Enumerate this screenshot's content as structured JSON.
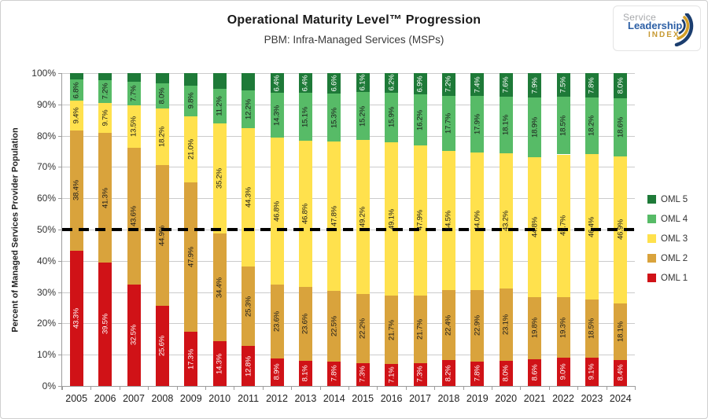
{
  "header": {
    "title": "Operational Maturity Level™ Progression",
    "subtitle": "PBM: Infra-Managed Services (MSPs)"
  },
  "logo": {
    "word1": "Service",
    "word2": "Leadership",
    "word3": "INDEX",
    "blue": "#2c5fa5",
    "gray": "#a7a9ac",
    "gold": "#c79a33",
    "swoosh_navy": "#1b3e6f"
  },
  "chart_data": {
    "type": "bar",
    "stacked": true,
    "title": "Operational Maturity Level™ Progression",
    "subtitle": "PBM: Infra-Managed Services (MSPs)",
    "xlabel": "",
    "ylabel": "Percent of Managed Services Provider Population",
    "ylim": [
      0,
      100
    ],
    "ytick_labels": [
      "0%",
      "10%",
      "20%",
      "30%",
      "40%",
      "50%",
      "60%",
      "70%",
      "80%",
      "90%",
      "100%"
    ],
    "grid": true,
    "grid_color": "#cbcbcb",
    "legend_position": "right",
    "legend_order_top_to_bottom": [
      "OML 5",
      "OML 4",
      "OML 3",
      "OML 2",
      "OML 1"
    ],
    "reference_line": {
      "value": 50,
      "style": "dashed",
      "color": "#000000"
    },
    "categories": [
      "2005",
      "2006",
      "2007",
      "2008",
      "2009",
      "2010",
      "2011",
      "2012",
      "2013",
      "2014",
      "2015",
      "2016",
      "2017",
      "2018",
      "2019",
      "2020",
      "2021",
      "2022",
      "2023",
      "2024"
    ],
    "series": [
      {
        "name": "OML 1",
        "color": "#d01217",
        "label_color": "#ffffff",
        "values": [
          43.3,
          39.5,
          32.5,
          25.6,
          17.3,
          14.3,
          12.8,
          8.9,
          8.1,
          7.8,
          7.3,
          7.1,
          7.3,
          8.2,
          7.8,
          8.0,
          8.6,
          9.0,
          9.1,
          8.4
        ],
        "labels": [
          "43.3%",
          "39.5%",
          "32.5%",
          "25.6%",
          "17.3%",
          "14.3%",
          "12.8%",
          "8.9%",
          "8.1%",
          "7.8%",
          "7.3%",
          "7.1%",
          "7.3%",
          "8.2%",
          "7.8%",
          "8.0%",
          "8.6%",
          "9.0%",
          "9.1%",
          "8.4%"
        ]
      },
      {
        "name": "OML 2",
        "color": "#d9a33c",
        "label_color": "#1a1a1a",
        "values": [
          38.4,
          41.3,
          43.6,
          44.9,
          47.9,
          34.4,
          25.3,
          23.6,
          23.6,
          22.5,
          22.2,
          21.7,
          21.7,
          22.4,
          22.9,
          23.1,
          19.8,
          19.3,
          18.5,
          18.1
        ],
        "labels": [
          "38.4%",
          "41.3%",
          "43.6%",
          "44.9%",
          "47.9%",
          "34.4%",
          "25.3%",
          "23.6%",
          "23.6%",
          "22.5%",
          "22.2%",
          "21.7%",
          "21.7%",
          "22.4%",
          "22.9%",
          "23.1%",
          "19.8%",
          "19.3%",
          "18.5%",
          "18.1%"
        ]
      },
      {
        "name": "OML 3",
        "color": "#ffe14d",
        "label_color": "#1a1a1a",
        "values": [
          9.4,
          9.7,
          13.5,
          18.2,
          21.0,
          35.2,
          44.3,
          46.8,
          46.8,
          47.8,
          49.2,
          49.1,
          47.9,
          44.5,
          44.0,
          43.2,
          44.8,
          45.7,
          46.4,
          46.9
        ],
        "labels": [
          "9.4%",
          "9.7%",
          "13.5%",
          "18.2%",
          "21.0%",
          "35.2%",
          "44.3%",
          "46.8%",
          "46.8%",
          "47.8%",
          "49.2%",
          "49.1%",
          "47.9%",
          "44.5%",
          "44.0%",
          "43.2%",
          "44.8%",
          "45.7%",
          "46.4%",
          "46.9%"
        ]
      },
      {
        "name": "OML 4",
        "color": "#57bb67",
        "label_color": "#1a1a1a",
        "values": [
          6.8,
          7.2,
          7.7,
          8.0,
          9.8,
          11.2,
          12.2,
          14.3,
          15.1,
          15.3,
          15.2,
          15.9,
          16.2,
          17.7,
          17.9,
          18.1,
          18.9,
          18.5,
          18.2,
          18.6
        ],
        "labels": [
          "6.8%",
          "7.2%",
          "7.7%",
          "8.0%",
          "9.8%",
          "11.2%",
          "12.2%",
          "14.3%",
          "15.1%",
          "15.3%",
          "15.2%",
          "15.9%",
          "16.2%",
          "17.7%",
          "17.9%",
          "18.1%",
          "18.9%",
          "18.5%",
          "18.2%",
          "18.6%"
        ]
      },
      {
        "name": "OML 5",
        "color": "#1e7a38",
        "label_color": "#ffffff",
        "values": [
          2.1,
          2.3,
          2.7,
          3.3,
          4.0,
          4.9,
          5.4,
          6.4,
          6.4,
          6.6,
          6.1,
          6.2,
          6.9,
          7.2,
          7.4,
          7.6,
          7.9,
          7.5,
          7.8,
          8.0
        ],
        "labels": [
          null,
          null,
          null,
          null,
          null,
          null,
          null,
          "6.4%",
          "6.4%",
          "6.6%",
          "6.1%",
          "6.2%",
          "6.9%",
          "7.2%",
          "7.4%",
          "7.6%",
          "7.9%",
          "7.5%",
          "7.8%",
          "8.0%"
        ]
      }
    ]
  }
}
